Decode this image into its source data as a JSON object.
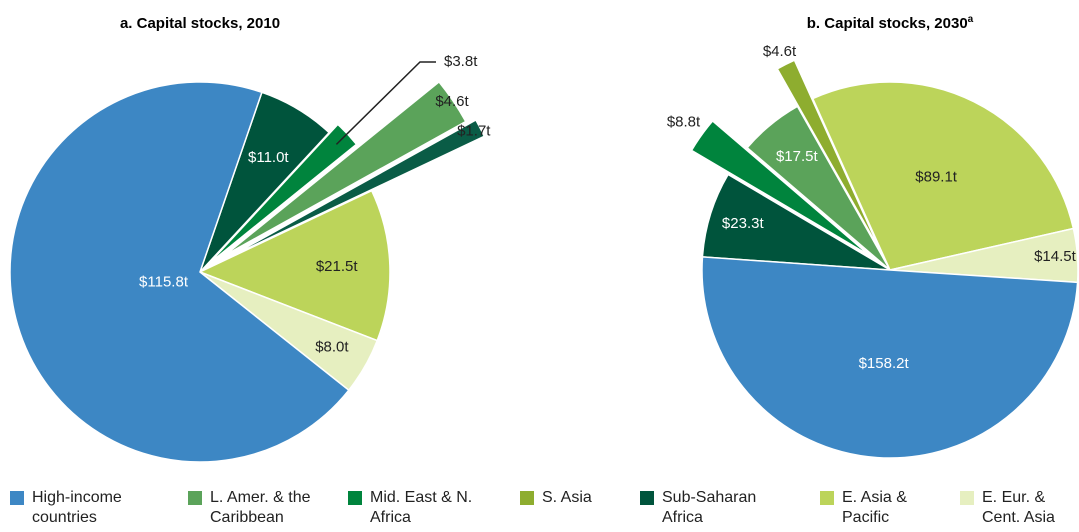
{
  "chart_data": [
    {
      "type": "pie",
      "title": "a. Capital stocks, 2010",
      "values": [
        11.0,
        3.8,
        4.6,
        1.7,
        21.5,
        8.0,
        115.8
      ],
      "value_labels": [
        "$11.0t",
        "$3.8t",
        "$4.6t",
        "$1.7t",
        "$21.5t",
        "$8.0t",
        "$115.8t"
      ],
      "colors": [
        "#00543c",
        "#00843d",
        "#5ba35a",
        "#0a5c46",
        "#bcd45a",
        "#e6efc0",
        "#3d87c4"
      ]
    },
    {
      "type": "pie",
      "title": "b. Capital stocks, 2030",
      "title_note": "a",
      "values": [
        23.3,
        8.8,
        17.5,
        4.6,
        89.1,
        14.5,
        158.2
      ],
      "value_labels": [
        "$23.3t",
        "$8.8t",
        "$17.5t",
        "$4.6t",
        "$89.1t",
        "$14.5t",
        "$158.2t"
      ],
      "colors": [
        "#00543c",
        "#00843d",
        "#5ba35a",
        "#8ead2f",
        "#bcd45a",
        "#e6efc0",
        "#3d87c4"
      ]
    }
  ],
  "legend": [
    {
      "name": "High-income countries",
      "color": "#3d87c4"
    },
    {
      "name": "L. Amer. & the Caribbean",
      "color": "#5ba35a"
    },
    {
      "name": "Mid. East & N. Africa",
      "color": "#00843d"
    },
    {
      "name": "S. Asia",
      "color": "#8ead2f"
    },
    {
      "name": "Sub-Saharan Africa",
      "color": "#00543c"
    },
    {
      "name": "E. Asia & Pacific",
      "color": "#bcd45a"
    },
    {
      "name": "E. Eur. & Cent. Asia",
      "color": "#e6efc0"
    }
  ]
}
